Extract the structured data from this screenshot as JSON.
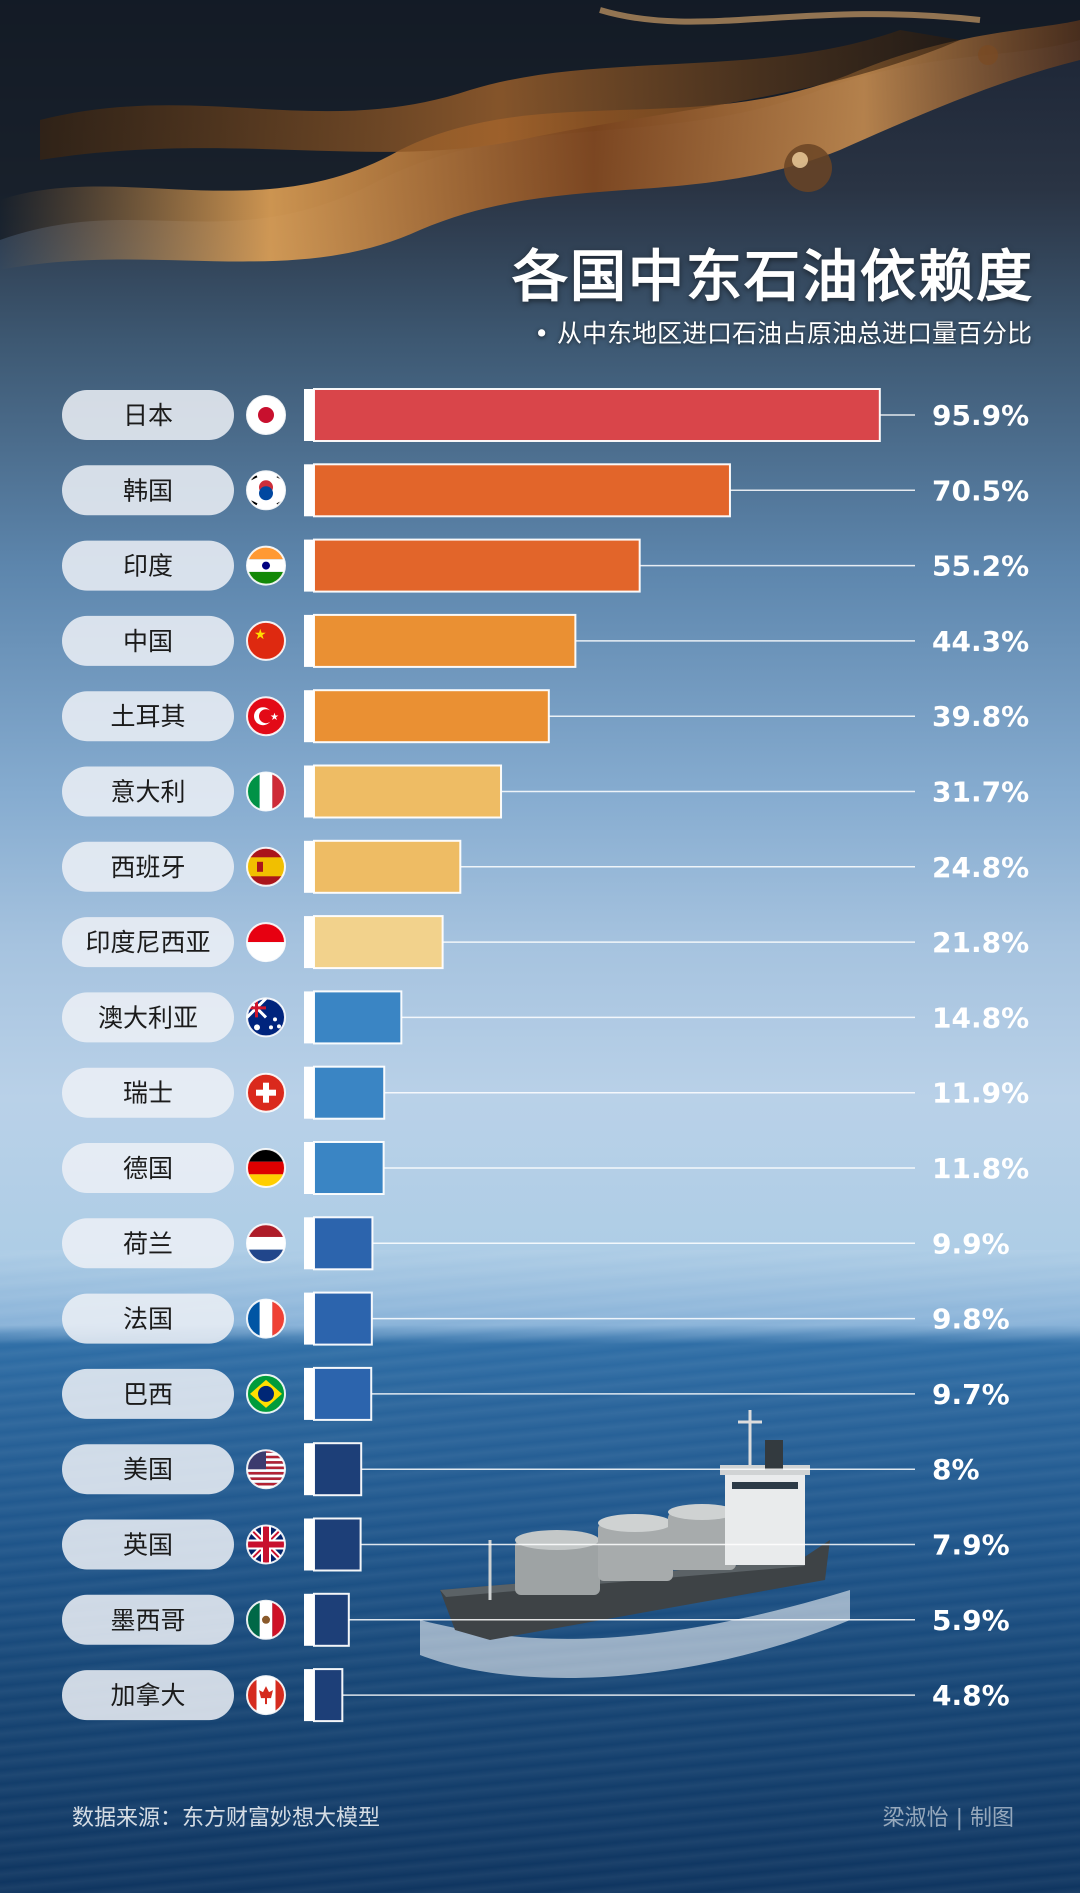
{
  "header": {
    "title": "各国中东石油依赖度",
    "subtitle": "• 从中东地区进口石油占原油总进口量百分比"
  },
  "chart_data": {
    "type": "bar",
    "orientation": "horizontal",
    "title": "各国中东石油依赖度",
    "subtitle": "从中东地区进口石油占原油总进口量百分比",
    "unit": "%",
    "categories": [
      "日本",
      "韩国",
      "印度",
      "中国",
      "土耳其",
      "意大利",
      "西班牙",
      "印度尼西亚",
      "澳大利亚",
      "瑞士",
      "德国",
      "荷兰",
      "法国",
      "巴西",
      "美国",
      "英国",
      "墨西哥",
      "加拿大"
    ],
    "values": [
      95.9,
      70.5,
      55.2,
      44.3,
      39.8,
      31.7,
      24.8,
      21.8,
      14.8,
      11.9,
      11.8,
      9.9,
      9.8,
      9.7,
      8,
      7.9,
      5.9,
      4.8
    ],
    "value_labels": [
      "95.9%",
      "70.5%",
      "55.2%",
      "44.3%",
      "39.8%",
      "31.7%",
      "24.8%",
      "21.8%",
      "14.8%",
      "11.9%",
      "11.8%",
      "9.9%",
      "9.8%",
      "9.7%",
      "8%",
      "7.9%",
      "5.9%",
      "4.8%"
    ],
    "flag_icons": [
      "japan-flag-icon",
      "south-korea-flag-icon",
      "india-flag-icon",
      "china-flag-icon",
      "turkey-flag-icon",
      "italy-flag-icon",
      "spain-flag-icon",
      "indonesia-flag-icon",
      "australia-flag-icon",
      "switzerland-flag-icon",
      "germany-flag-icon",
      "netherlands-flag-icon",
      "france-flag-icon",
      "brazil-flag-icon",
      "usa-flag-icon",
      "uk-flag-icon",
      "mexico-flag-icon",
      "canada-flag-icon"
    ],
    "bar_colors": [
      "#d9454a",
      "#e2652a",
      "#e2652a",
      "#ea9033",
      "#ea9033",
      "#eebc64",
      "#eebc64",
      "#f2d28c",
      "#3a85c4",
      "#3a85c4",
      "#3a85c4",
      "#2c64ad",
      "#2c64ad",
      "#2c64ad",
      "#1d3f78",
      "#1d3f78",
      "#1d3f78",
      "#1d3f78"
    ],
    "xlim": [
      0,
      100
    ],
    "grid": false,
    "legend": "none"
  },
  "footer": {
    "source": "数据来源：东方财富妙想大模型",
    "author": "梁淑怡 | 制图"
  }
}
